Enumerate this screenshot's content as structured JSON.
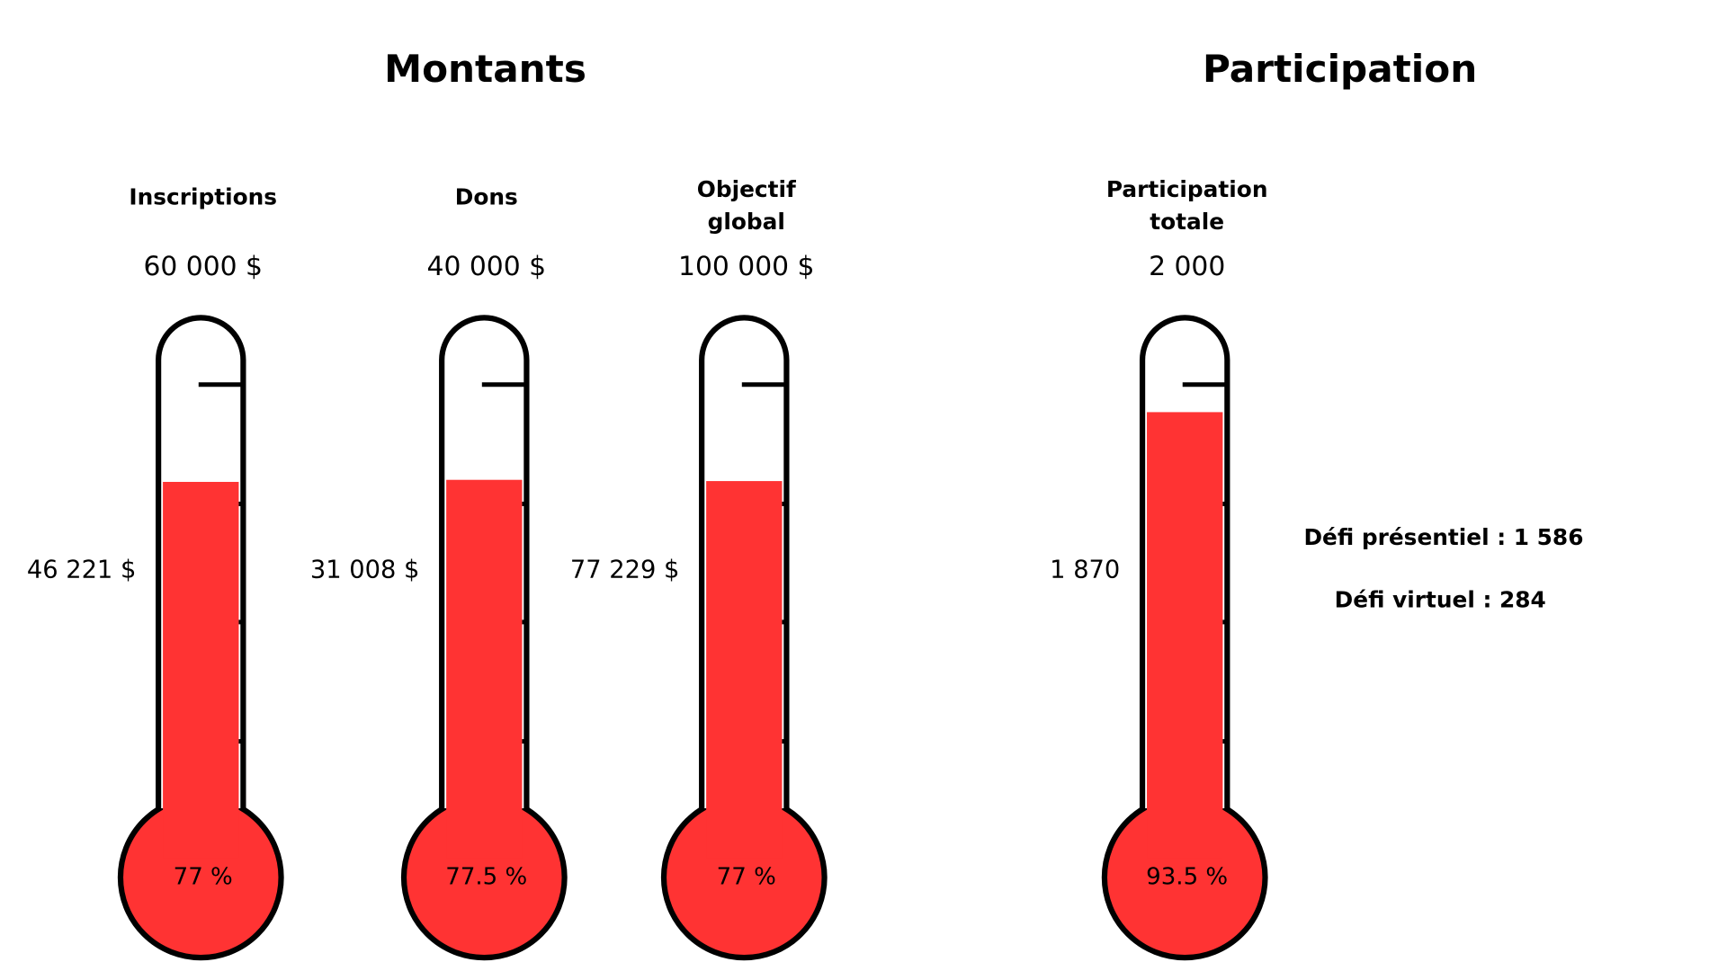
{
  "sections": [
    {
      "title": "Montants",
      "gauges": [
        {
          "label": [
            "Inscriptions"
          ],
          "goal": 60000,
          "goal_label": "60 000 $",
          "value": 46221,
          "value_label": "46 221 $",
          "percent": 77,
          "percent_label": "77 %"
        },
        {
          "label": [
            "Dons"
          ],
          "goal": 40000,
          "goal_label": "40 000 $",
          "value": 31008,
          "value_label": "31 008 $",
          "percent": 77.5,
          "percent_label": "77.5 %"
        },
        {
          "label": [
            "Objectif",
            "global"
          ],
          "goal": 100000,
          "goal_label": "100 000 $",
          "value": 77229,
          "value_label": "77 229 $",
          "percent": 77,
          "percent_label": "77 %"
        }
      ]
    },
    {
      "title": "Participation",
      "gauges": [
        {
          "label": [
            "Participation",
            "totale"
          ],
          "goal": 2000,
          "goal_label": "2 000",
          "value": 1870,
          "value_label": "1 870",
          "percent": 93.5,
          "percent_label": "93.5 %"
        }
      ]
    }
  ],
  "notes": [
    "Défi présentiel : 1 586",
    "Défi virtuel : 284"
  ]
}
